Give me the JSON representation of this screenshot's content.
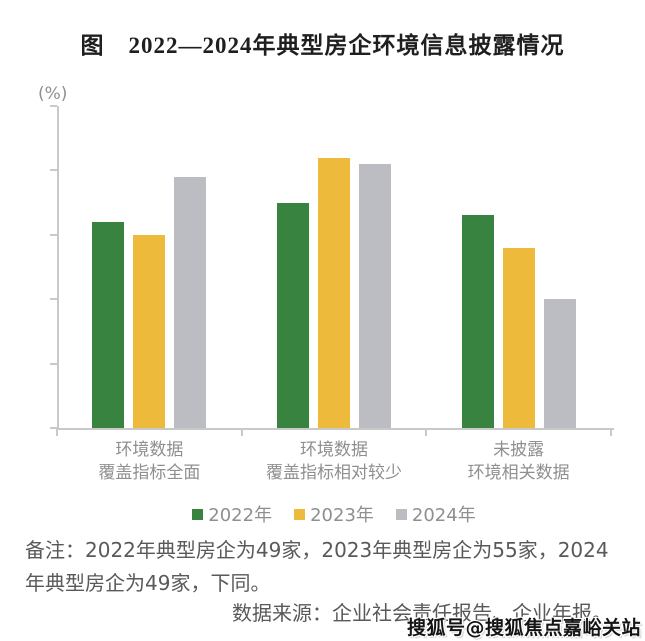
{
  "chart_data": {
    "type": "bar",
    "title": "图　2022—2024年典型房企环境信息披露情况",
    "unit_label": "(%)",
    "categories": [
      [
        "环境数据",
        "覆盖指标全面"
      ],
      [
        "环境数据",
        "覆盖指标相对较少"
      ],
      [
        "未披露",
        "环境相关数据"
      ]
    ],
    "series": [
      {
        "name": "2022年",
        "color": "#37833F",
        "values": [
          32,
          35,
          33
        ]
      },
      {
        "name": "2023年",
        "color": "#EDBA3C",
        "values": [
          30,
          42,
          28
        ]
      },
      {
        "name": "2024年",
        "color": "#BBBDC2",
        "values": [
          39,
          41,
          20
        ]
      }
    ],
    "ylim": [
      0,
      50
    ],
    "yticks": [
      0,
      10,
      20,
      30,
      40,
      50
    ],
    "grid": false,
    "legend_position": "bottom",
    "axis_color": "#c9c9c9",
    "label_color": "#8f8f8f"
  },
  "notes": {
    "note": "备注：2022年典型房企为49家，2023年典型房企为55家，2024年典型房企为49家，下同。",
    "source": "数据来源：企业社会责任报告、企业年报。"
  },
  "watermark": "搜狐号@搜狐焦点嘉峪关站"
}
